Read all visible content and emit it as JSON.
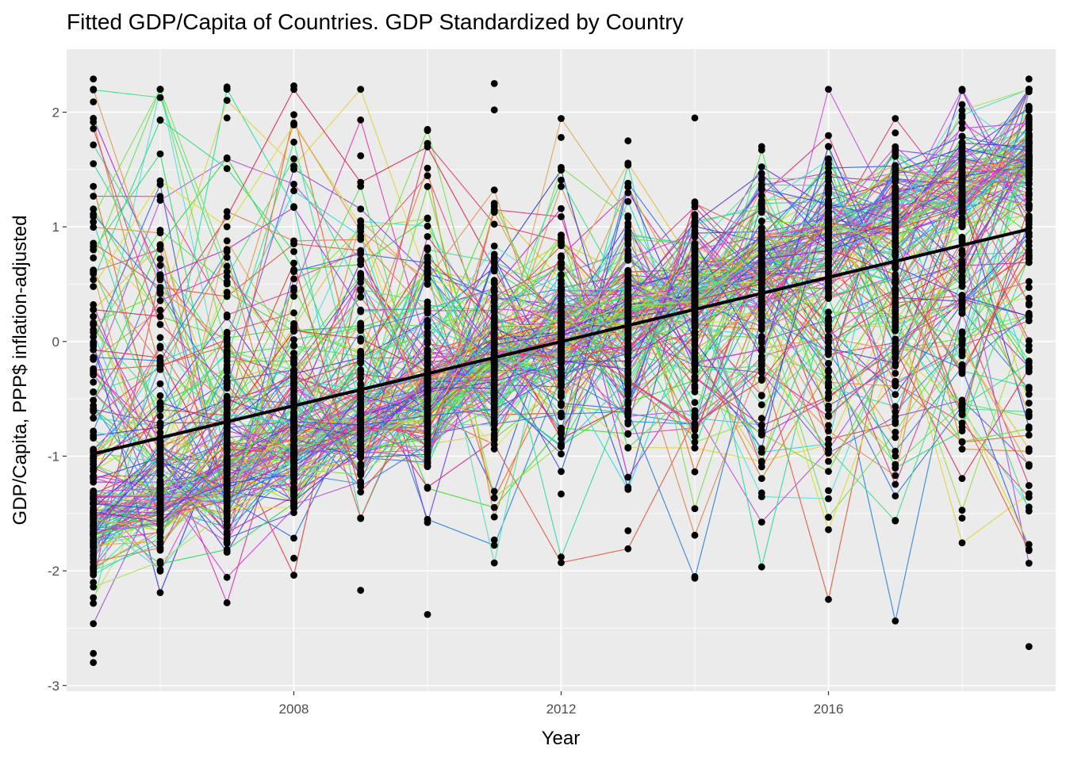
{
  "chart_data": {
    "type": "line",
    "title": "Fitted GDP/Capita of Countries. GDP Standardized by Country",
    "xlabel": "Year",
    "ylabel": "GDP/Capita, PPP$ inflation-adjusted",
    "x_ticks": [
      2008,
      2012,
      2016
    ],
    "x_tick_labels": [
      "2008",
      "2012",
      "2016"
    ],
    "y_ticks": [
      -3,
      -2,
      -1,
      0,
      1,
      2
    ],
    "y_tick_labels": [
      "-3",
      "-2",
      "-1",
      "0",
      "1",
      "2"
    ],
    "xlim": [
      2004.6,
      2019.4
    ],
    "ylim": [
      -3.05,
      2.55
    ],
    "years": [
      2005,
      2006,
      2007,
      2008,
      2009,
      2010,
      2011,
      2012,
      2013,
      2014,
      2015,
      2016,
      2017,
      2018,
      2019
    ],
    "fit_line": {
      "x": [
        2005,
        2019
      ],
      "y": [
        -0.98,
        0.98
      ],
      "color": "#000000"
    },
    "point_color": "#000000",
    "legend": "none",
    "grid": true,
    "panel_background": "#ebebeb",
    "n_country_series": 180,
    "notable_points": [
      {
        "x": 2005,
        "y": 2.29
      },
      {
        "x": 2005,
        "y": 2.09
      },
      {
        "x": 2005,
        "y": -2.8
      },
      {
        "x": 2005,
        "y": -2.72
      },
      {
        "x": 2006,
        "y": 1.93
      },
      {
        "x": 2006,
        "y": -1.8
      },
      {
        "x": 2007,
        "y": 2.22
      },
      {
        "x": 2007,
        "y": 1.95
      },
      {
        "x": 2007,
        "y": -1.75
      },
      {
        "x": 2008,
        "y": 2.23
      },
      {
        "x": 2008,
        "y": -1.89
      },
      {
        "x": 2009,
        "y": 1.62
      },
      {
        "x": 2009,
        "y": -2.17
      },
      {
        "x": 2010,
        "y": 1.84
      },
      {
        "x": 2010,
        "y": -2.38
      },
      {
        "x": 2011,
        "y": 2.25
      },
      {
        "x": 2011,
        "y": 2.02
      },
      {
        "x": 2011,
        "y": -1.73
      },
      {
        "x": 2012,
        "y": 1.78
      },
      {
        "x": 2012,
        "y": -1.33
      },
      {
        "x": 2013,
        "y": 1.75
      },
      {
        "x": 2013,
        "y": -1.65
      },
      {
        "x": 2014,
        "y": 1.95
      },
      {
        "x": 2014,
        "y": -2.05
      },
      {
        "x": 2015,
        "y": 1.7
      },
      {
        "x": 2015,
        "y": -1.32
      },
      {
        "x": 2016,
        "y": 1.4
      },
      {
        "x": 2016,
        "y": -1.3
      },
      {
        "x": 2017,
        "y": 1.82
      },
      {
        "x": 2017,
        "y": -1.56
      },
      {
        "x": 2018,
        "y": 1.79
      },
      {
        "x": 2018,
        "y": -1.54
      },
      {
        "x": 2019,
        "y": 2.29
      },
      {
        "x": 2019,
        "y": -2.66
      }
    ]
  }
}
